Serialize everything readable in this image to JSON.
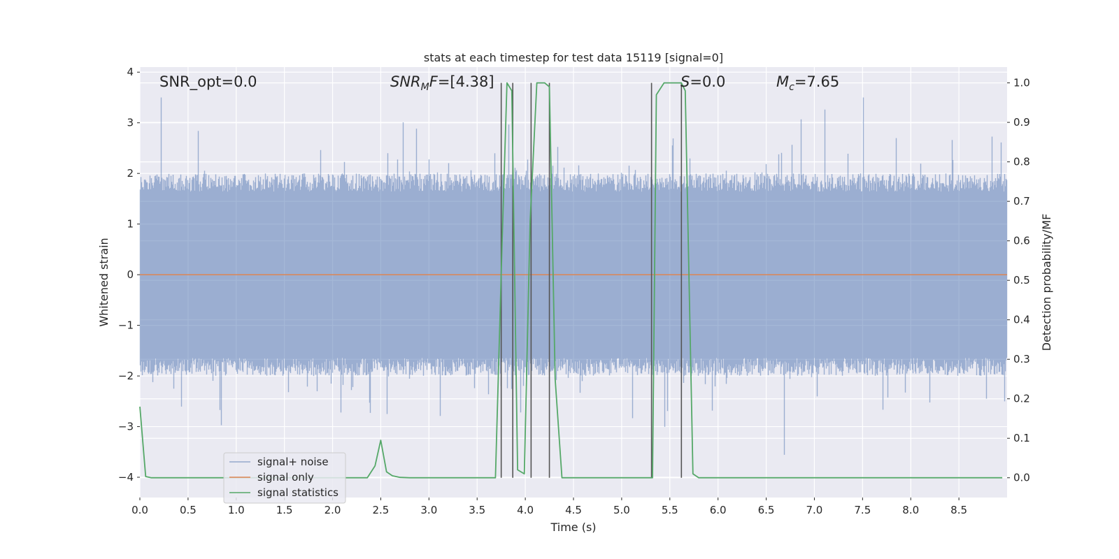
{
  "chart_data": {
    "type": "line",
    "title": "stats at each timestep for test data 15119 [signal=0]",
    "xlabel": "Time (s)",
    "ylabel": "Whitened strain",
    "y2label": "Detection probability/MF",
    "xlim": [
      0.0,
      9.0
    ],
    "ylim": [
      -4.4,
      4.1
    ],
    "y2lim": [
      -0.05,
      1.04
    ],
    "xticks": [
      0.0,
      0.5,
      1.0,
      1.5,
      2.0,
      2.5,
      3.0,
      3.5,
      4.0,
      4.5,
      5.0,
      5.5,
      6.0,
      6.5,
      7.0,
      7.5,
      8.0,
      8.5
    ],
    "yticks": [
      4,
      3,
      2,
      1,
      0,
      -1,
      -2,
      -3,
      -4
    ],
    "y2ticks": [
      1.0,
      0.9,
      0.8,
      0.7,
      0.6,
      0.5,
      0.4,
      0.3,
      0.2,
      0.1,
      0.0
    ],
    "xtick_labels": [
      "0.0",
      "0.5",
      "1.0",
      "1.5",
      "2.0",
      "2.5",
      "3.0",
      "3.5",
      "4.0",
      "4.5",
      "5.0",
      "5.5",
      "6.0",
      "6.5",
      "7.0",
      "7.5",
      "8.0",
      "8.5"
    ],
    "ytick_labels": [
      "4",
      "3",
      "2",
      "1",
      "0",
      "−1",
      "−2",
      "−3",
      "−4"
    ],
    "y2tick_labels": [
      "1.0",
      "0.9",
      "0.8",
      "0.7",
      "0.6",
      "0.5",
      "0.4",
      "0.3",
      "0.2",
      "0.1",
      "0.0"
    ],
    "grid": true,
    "legend_position": "bottom-left",
    "annotations": [
      {
        "name": "snr-opt",
        "text": "SNR_opt=0.0",
        "x": 0.2,
        "y": 3.7
      },
      {
        "name": "snr-mf",
        "text_italic": "SNR",
        "text_sub": "M",
        "text_italic2": "F",
        "text_rest": "=[4.38]",
        "x": 2.6,
        "y": 3.7
      },
      {
        "name": "s-value",
        "text_italic": "S",
        "text_rest": "=0.0",
        "x": 5.6,
        "y": 3.7
      },
      {
        "name": "chirp-mass",
        "text_italic": "M",
        "text_sub": "c",
        "text_rest": "=7.65",
        "x": 6.6,
        "y": 3.7
      }
    ],
    "series": [
      {
        "name": "signal+ noise",
        "color": "#4c72b0",
        "axis": "left",
        "style": "noise",
        "duration": 9.0,
        "sample_rate": 2048,
        "typical_max": 2.0,
        "typical_min": -2.0,
        "peak_max": 3.5,
        "peak_min": -4.0
      },
      {
        "name": "signal only",
        "color": "#dd8452",
        "axis": "left",
        "x": [
          0.0,
          9.0
        ],
        "y": [
          0.0,
          0.0
        ]
      },
      {
        "name": "signal statistics",
        "color": "#55a868",
        "axis": "right",
        "x": [
          0.0,
          0.06,
          0.12,
          0.5,
          1.0,
          1.5,
          2.0,
          2.36,
          2.44,
          2.5,
          2.56,
          2.62,
          2.7,
          2.8,
          3.0,
          3.5,
          3.69,
          3.76,
          3.81,
          3.86,
          3.92,
          3.99,
          4.05,
          4.12,
          4.2,
          4.25,
          4.31,
          4.38,
          4.5,
          5.0,
          5.32,
          5.36,
          5.44,
          5.62,
          5.66,
          5.74,
          5.8,
          6.0,
          7.0,
          8.0,
          8.95
        ],
        "y": [
          0.18,
          0.003,
          0.0,
          0.0,
          0.0,
          0.0,
          0.0,
          0.0,
          0.03,
          0.095,
          0.015,
          0.005,
          0.001,
          0.0,
          0.0,
          0.0,
          0.0,
          0.6,
          1.0,
          0.98,
          0.02,
          0.01,
          0.65,
          1.0,
          1.0,
          0.99,
          0.25,
          0.0,
          0.0,
          0.0,
          0.0,
          0.97,
          1.0,
          1.0,
          0.98,
          0.01,
          0.0,
          0.0,
          0.0,
          0.0,
          0.0
        ]
      }
    ],
    "vertical_markers": {
      "color": "#555555",
      "x": [
        3.75,
        3.87,
        4.06,
        4.25,
        5.31,
        5.62
      ],
      "ymax": 1.0
    }
  }
}
